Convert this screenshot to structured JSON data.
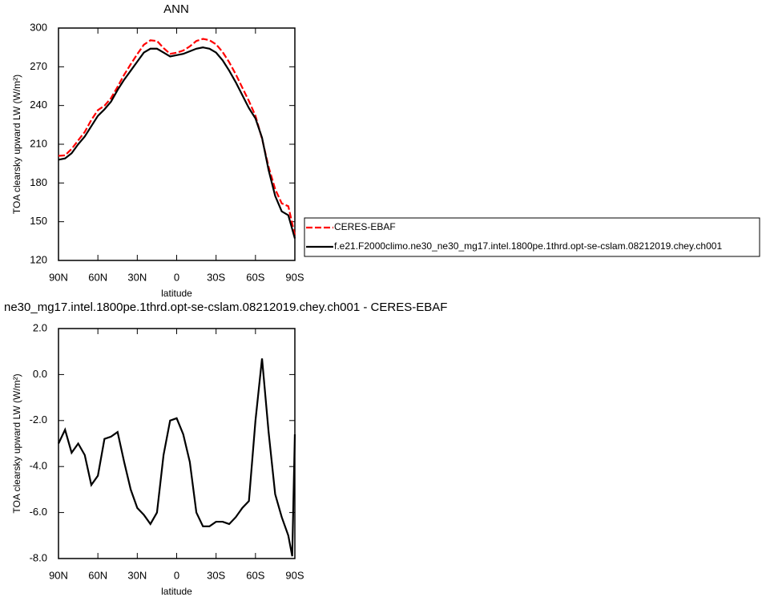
{
  "chart_data": [
    {
      "type": "line",
      "title": "ANN",
      "x_label": "latitude",
      "y_label": "TOA clearsky upward LW (W/m²)",
      "x": [
        90,
        85,
        80,
        75,
        70,
        65,
        60,
        55,
        50,
        45,
        40,
        35,
        30,
        25,
        20,
        15,
        10,
        5,
        0,
        -5,
        -10,
        -15,
        -20,
        -25,
        -30,
        -35,
        -40,
        -45,
        -50,
        -55,
        -60,
        -65,
        -70,
        -75,
        -80,
        -85,
        -90
      ],
      "xlim": [
        90,
        -90
      ],
      "xticks": [
        {
          "value": 90,
          "label": "90N"
        },
        {
          "value": 60,
          "label": "60N"
        },
        {
          "value": 30,
          "label": "30N"
        },
        0,
        {
          "value": -30,
          "label": "30S"
        },
        {
          "value": -60,
          "label": "60S"
        },
        {
          "value": -90,
          "label": "90S"
        }
      ],
      "ylim": [
        120,
        300
      ],
      "yticks": [
        120,
        150,
        180,
        210,
        240,
        270,
        300
      ],
      "legend": "right",
      "series": [
        {
          "name": "CERES-EBAF",
          "color": "#ff0000",
          "dash": true,
          "values": [
            201,
            201.4,
            206.4,
            213,
            219.5,
            228.8,
            236.4,
            239.8,
            245.7,
            254.5,
            263.8,
            272,
            279.8,
            287.1,
            290.5,
            290,
            284.5,
            280,
            280.9,
            282.6,
            285.8,
            290,
            291.6,
            290.6,
            287.4,
            281.4,
            273.5,
            264.2,
            253.8,
            243.5,
            232,
            214.3,
            192.5,
            175.2,
            164.2,
            162,
            139.6
          ]
        },
        {
          "name": "f.e21.F2000climo.ne30_ne30_mg17.intel.1800pe.1thrd.opt-se-cslam.08212019.chey.ch001",
          "color": "#000000",
          "dash": false,
          "values": [
            198,
            199,
            203,
            210,
            216,
            224,
            232,
            237,
            243,
            252,
            260,
            267,
            274,
            281,
            284,
            284,
            281,
            278,
            279,
            280,
            282,
            284,
            285,
            284,
            281,
            275,
            267,
            258,
            248,
            238,
            230,
            215,
            190,
            170,
            158,
            155,
            137
          ]
        }
      ]
    },
    {
      "type": "line",
      "title": "ne30_mg17.intel.1800pe.1thrd.opt-se-cslam.08212019.chey.ch001 - CERES-EBAF",
      "x_label": "latitude",
      "y_label": "TOA clearsky upward LW (W/m²)",
      "x": [
        90,
        85,
        80,
        75,
        70,
        65,
        60,
        55,
        50,
        45,
        40,
        35,
        30,
        25,
        20,
        15,
        10,
        5,
        0,
        -5,
        -10,
        -15,
        -20,
        -25,
        -30,
        -35,
        -40,
        -45,
        -50,
        -55,
        -60,
        -65,
        -70,
        -75,
        -80,
        -85,
        -88,
        -90
      ],
      "xlim": [
        90,
        -90
      ],
      "xticks": [
        {
          "value": 90,
          "label": "90N"
        },
        {
          "value": 60,
          "label": "60N"
        },
        {
          "value": 30,
          "label": "30N"
        },
        0,
        {
          "value": -30,
          "label": "30S"
        },
        {
          "value": -60,
          "label": "60S"
        },
        {
          "value": -90,
          "label": "90S"
        }
      ],
      "ylim": [
        -8,
        2
      ],
      "yticks": [
        {
          "value": -8,
          "label": "-8.0"
        },
        {
          "value": -6,
          "label": "-6.0"
        },
        {
          "value": -4,
          "label": "-4.0"
        },
        {
          "value": -2,
          "label": "-2.0"
        },
        {
          "value": 0,
          "label": "0.0"
        },
        {
          "value": 2,
          "label": "2.0"
        }
      ],
      "series": [
        {
          "color": "#000000",
          "dash": false,
          "values": [
            -3.0,
            -2.4,
            -3.4,
            -3.0,
            -3.5,
            -4.8,
            -4.4,
            -2.8,
            -2.7,
            -2.5,
            -3.8,
            -5.0,
            -5.8,
            -6.1,
            -6.5,
            -6.0,
            -3.5,
            -2.0,
            -1.9,
            -2.6,
            -3.8,
            -6.0,
            -6.6,
            -6.6,
            -6.4,
            -6.4,
            -6.5,
            -6.2,
            -5.8,
            -5.5,
            -2.0,
            0.7,
            -2.5,
            -5.2,
            -6.2,
            -7.0,
            -7.9,
            -2.6
          ]
        }
      ]
    }
  ]
}
